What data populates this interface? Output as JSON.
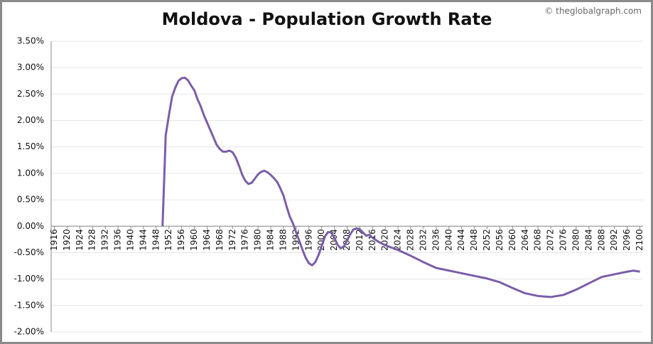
{
  "chart_data": {
    "type": "line",
    "title": "Moldova - Population Growth Rate",
    "watermark": "© theglobalgraph.com",
    "x": [
      1950,
      1951,
      1952,
      1953,
      1954,
      1955,
      1956,
      1957,
      1958,
      1959,
      1960,
      1961,
      1962,
      1963,
      1964,
      1965,
      1966,
      1967,
      1968,
      1969,
      1970,
      1971,
      1972,
      1973,
      1974,
      1975,
      1976,
      1977,
      1978,
      1979,
      1980,
      1981,
      1982,
      1983,
      1984,
      1985,
      1986,
      1987,
      1988,
      1989,
      1990,
      1991,
      1992,
      1993,
      1994,
      1995,
      1996,
      1997,
      1998,
      1999,
      2000,
      2001,
      2002,
      2003,
      2004,
      2005,
      2006,
      2007,
      2008,
      2009,
      2010,
      2011,
      2012,
      2013,
      2014,
      2015,
      2016,
      2018,
      2020,
      2024,
      2028,
      2032,
      2036,
      2040,
      2044,
      2048,
      2052,
      2056,
      2060,
      2064,
      2068,
      2072,
      2076,
      2080,
      2084,
      2088,
      2092,
      2096,
      2098,
      2100
    ],
    "series": [
      {
        "name": "Population Growth Rate",
        "color": "#7b5ea7",
        "values": [
          0.0,
          1.72,
          2.1,
          2.45,
          2.62,
          2.75,
          2.8,
          2.81,
          2.76,
          2.66,
          2.57,
          2.4,
          2.27,
          2.1,
          1.96,
          1.82,
          1.68,
          1.54,
          1.46,
          1.41,
          1.41,
          1.43,
          1.4,
          1.3,
          1.15,
          0.98,
          0.86,
          0.8,
          0.82,
          0.9,
          0.98,
          1.03,
          1.05,
          1.02,
          0.97,
          0.91,
          0.84,
          0.72,
          0.58,
          0.37,
          0.18,
          0.05,
          -0.12,
          -0.28,
          -0.45,
          -0.6,
          -0.7,
          -0.74,
          -0.68,
          -0.55,
          -0.38,
          -0.2,
          -0.11,
          -0.12,
          -0.22,
          -0.35,
          -0.42,
          -0.38,
          -0.27,
          -0.15,
          -0.06,
          -0.04,
          -0.06,
          -0.12,
          -0.18,
          -0.16,
          -0.22,
          -0.3,
          -0.36,
          -0.45,
          -0.56,
          -0.68,
          -0.79,
          -0.84,
          -0.89,
          -0.94,
          -0.99,
          -1.06,
          -1.17,
          -1.27,
          -1.32,
          -1.34,
          -1.3,
          -1.2,
          -1.08,
          -0.96,
          -0.91,
          -0.86,
          -0.84,
          -0.86
        ]
      }
    ],
    "xlim": [
      1915,
      2101
    ],
    "xticks": [
      1916,
      1920,
      1924,
      1928,
      1932,
      1936,
      1940,
      1944,
      1948,
      1952,
      1956,
      1960,
      1964,
      1968,
      1972,
      1976,
      1980,
      1984,
      1988,
      1992,
      1996,
      2000,
      2004,
      2008,
      2012,
      2016,
      2020,
      2024,
      2028,
      2032,
      2036,
      2040,
      2044,
      2048,
      2052,
      2056,
      2060,
      2064,
      2068,
      2072,
      2076,
      2080,
      2084,
      2088,
      2092,
      2096,
      2100
    ],
    "ylim": [
      -2.0,
      3.5
    ],
    "yticks": [
      {
        "value": 3.5,
        "label": "3.50%"
      },
      {
        "value": 3.0,
        "label": "3.00%"
      },
      {
        "value": 2.5,
        "label": "2.50%"
      },
      {
        "value": 2.0,
        "label": "2.00%"
      },
      {
        "value": 1.5,
        "label": "1.50%"
      },
      {
        "value": 1.0,
        "label": "1.00%"
      },
      {
        "value": 0.5,
        "label": "0.50%"
      },
      {
        "value": 0.0,
        "label": "0.00%"
      },
      {
        "value": -0.5,
        "label": "-0.50%"
      },
      {
        "value": -1.0,
        "label": "-1.00%"
      },
      {
        "value": -1.5,
        "label": "-1.50%"
      },
      {
        "value": -2.0,
        "label": "-2.00%"
      }
    ],
    "grid": true
  }
}
